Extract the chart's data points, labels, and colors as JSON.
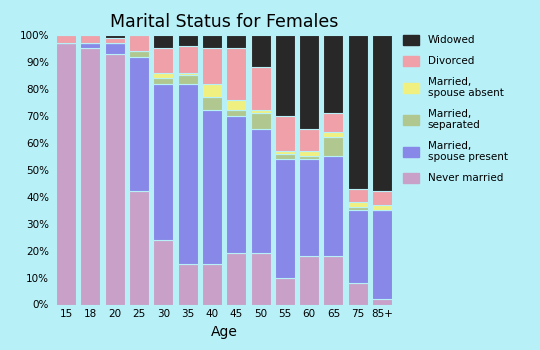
{
  "categories": [
    "15",
    "18",
    "20",
    "25",
    "30",
    "35",
    "40",
    "45",
    "50",
    "55",
    "60",
    "65",
    "75",
    "85+"
  ],
  "never_married": [
    97,
    95,
    93,
    42,
    24,
    15,
    15,
    19,
    19,
    10,
    18,
    18,
    8,
    2
  ],
  "spouse_present": [
    0,
    2,
    4,
    50,
    58,
    67,
    57,
    51,
    46,
    44,
    36,
    37,
    27,
    33
  ],
  "separated": [
    0,
    0,
    0,
    2,
    2,
    3,
    5,
    2,
    6,
    2,
    1,
    7,
    1,
    0
  ],
  "spouse_absent": [
    0,
    0,
    0,
    0,
    2,
    1,
    5,
    4,
    1,
    1,
    2,
    2,
    2,
    2
  ],
  "divorced": [
    3,
    3,
    2,
    6,
    9,
    10,
    13,
    19,
    16,
    13,
    8,
    7,
    5,
    5
  ],
  "widowed": [
    0,
    0,
    1,
    0,
    5,
    4,
    5,
    5,
    12,
    30,
    35,
    29,
    57,
    58
  ],
  "colors": {
    "never_married": "#c8a0c8",
    "spouse_present": "#8888e8",
    "separated": "#b0c890",
    "spouse_absent": "#f0f080",
    "divorced": "#f0a0a8",
    "widowed": "#282828"
  },
  "title": "Marital Status for Females",
  "xlabel": "Age",
  "background_color": "#b8f0f8",
  "tick_labels": [
    "15",
    "18",
    "20",
    "25",
    "30",
    "35",
    "40",
    "45",
    "50",
    "55",
    "60",
    "65",
    "75",
    "85+"
  ],
  "legend_labels": [
    "Widowed",
    "Divorced",
    "Married,\nspouse absent",
    "Married,\nseparated",
    "Married,\nspouse present",
    "Never married"
  ]
}
